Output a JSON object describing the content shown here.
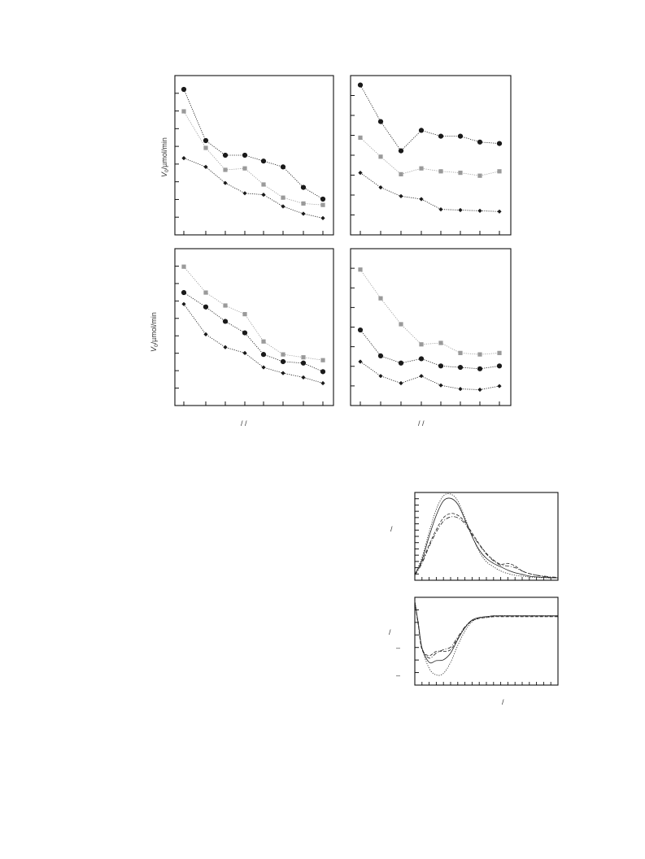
{
  "colors": {
    "series_dark": "#1a1a1a",
    "series_gray": "#9a9a9a",
    "axis": "#111111",
    "text": "#333333"
  },
  "labels": {
    "top_ylabel_main": "V",
    "top_ylabel_sub": "0",
    "top_ylabel_unit": "/µmol/min",
    "bottom_ylabel_main": "V",
    "bottom_ylabel_sub": "0",
    "bottom_ylabel_unit": "/µmol/min",
    "xlabel_left_marks": "/      /",
    "xlabel_right_marks": "/   /",
    "spec_top_ylabel": "/",
    "spec_bottom_ylabel": "/",
    "spec_bottom_tick1": "–",
    "spec_bottom_tick2": "–",
    "spec_xlabel": "/"
  },
  "chart_data": [
    {
      "type": "line",
      "panel": "top-left",
      "ylabel": "V0/µmol/min",
      "x": [
        1,
        2,
        3,
        4,
        5,
        6,
        7,
        8
      ],
      "xlim": [
        0.6,
        8.4
      ],
      "ylim": [
        0,
        100
      ],
      "series": [
        {
          "marker": "circle",
          "color": "#1a1a1a",
          "values": [
            95,
            60,
            50,
            50,
            46,
            42,
            28,
            20
          ]
        },
        {
          "marker": "square",
          "color": "#9a9a9a",
          "values": [
            80,
            55,
            40,
            41,
            30,
            21,
            17,
            16
          ]
        },
        {
          "marker": "diamond",
          "color": "#1a1a1a",
          "values": [
            48,
            42,
            31,
            24,
            23,
            15,
            10,
            7
          ]
        }
      ]
    },
    {
      "type": "line",
      "panel": "top-right",
      "x": [
        1,
        2,
        3,
        4,
        5,
        6,
        7,
        8
      ],
      "xlim": [
        0.6,
        8.4
      ],
      "ylim": [
        0,
        100
      ],
      "series": [
        {
          "marker": "circle",
          "color": "#1a1a1a",
          "values": [
            98,
            73,
            53,
            67,
            63,
            63,
            59,
            58
          ]
        },
        {
          "marker": "square",
          "color": "#9a9a9a",
          "values": [
            62,
            49,
            37,
            41,
            39,
            38,
            36,
            39
          ]
        },
        {
          "marker": "diamond",
          "color": "#1a1a1a",
          "values": [
            38,
            28,
            22,
            20,
            13,
            12.5,
            12,
            11.5
          ]
        }
      ]
    },
    {
      "type": "line",
      "panel": "bottom-left",
      "ylabel": "V0/µmol/min",
      "x": [
        1,
        2,
        3,
        4,
        5,
        6,
        7,
        8
      ],
      "xlim": [
        0.6,
        8.4
      ],
      "ylim": [
        0,
        100
      ],
      "series": [
        {
          "marker": "square",
          "color": "#9a9a9a",
          "values": [
            92,
            74,
            65,
            59,
            40,
            31,
            29,
            27
          ]
        },
        {
          "marker": "circle",
          "color": "#1a1a1a",
          "values": [
            74,
            64,
            54,
            46,
            31,
            26,
            25,
            19
          ]
        },
        {
          "marker": "diamond",
          "color": "#1a1a1a",
          "values": [
            66,
            45,
            36,
            32,
            22,
            18,
            15,
            11
          ]
        }
      ]
    },
    {
      "type": "line",
      "panel": "bottom-right",
      "x": [
        1,
        2,
        3,
        4,
        5,
        6,
        7,
        8
      ],
      "xlim": [
        0.6,
        8.4
      ],
      "ylim": [
        0,
        100
      ],
      "series": [
        {
          "marker": "square",
          "color": "#9a9a9a",
          "values": [
            90,
            70,
            52,
            38,
            39,
            32,
            31,
            32
          ]
        },
        {
          "marker": "circle",
          "color": "#1a1a1a",
          "values": [
            48,
            30,
            25,
            28,
            23,
            22,
            21,
            23
          ]
        },
        {
          "marker": "diamond",
          "color": "#1a1a1a",
          "values": [
            26,
            16,
            11,
            16,
            9.5,
            7,
            6.5,
            9
          ]
        }
      ]
    },
    {
      "type": "line",
      "panel": "spectrum-top",
      "x": [
        0,
        0.05,
        0.1,
        0.15,
        0.2,
        0.25,
        0.3,
        0.35,
        0.4,
        0.45,
        0.5,
        0.55,
        0.6,
        0.65,
        0.7,
        0.75,
        0.8,
        0.85,
        0.9,
        0.95,
        1.0
      ],
      "xlim": [
        0,
        1
      ],
      "ylim": [
        0,
        1
      ],
      "series": [
        {
          "style": "dotted",
          "values": [
            0.05,
            0.25,
            0.55,
            0.82,
            0.98,
            1.0,
            0.92,
            0.72,
            0.5,
            0.32,
            0.2,
            0.14,
            0.09,
            0.06,
            0.04,
            0.03,
            0.02,
            0.015,
            0.01,
            0.01,
            0.01
          ]
        },
        {
          "style": "solid",
          "values": [
            0.04,
            0.22,
            0.5,
            0.75,
            0.92,
            0.95,
            0.88,
            0.7,
            0.5,
            0.34,
            0.24,
            0.18,
            0.14,
            0.1,
            0.07,
            0.05,
            0.03,
            0.02,
            0.015,
            0.01,
            0.01
          ]
        },
        {
          "style": "dashed",
          "values": [
            0.05,
            0.2,
            0.4,
            0.58,
            0.72,
            0.77,
            0.75,
            0.67,
            0.54,
            0.41,
            0.3,
            0.22,
            0.17,
            0.18,
            0.15,
            0.09,
            0.06,
            0.04,
            0.025,
            0.015,
            0.01
          ]
        },
        {
          "style": "dash-dot",
          "values": [
            0.04,
            0.18,
            0.38,
            0.55,
            0.68,
            0.73,
            0.72,
            0.65,
            0.52,
            0.4,
            0.29,
            0.21,
            0.16,
            0.15,
            0.13,
            0.09,
            0.06,
            0.04,
            0.03,
            0.02,
            0.015
          ]
        }
      ]
    },
    {
      "type": "line",
      "panel": "spectrum-bottom",
      "x": [
        0,
        0.025,
        0.05,
        0.1,
        0.15,
        0.2,
        0.25,
        0.3,
        0.35,
        0.4,
        0.45,
        0.5,
        0.55,
        0.6,
        0.7,
        0.8,
        0.9,
        1.0
      ],
      "xlim": [
        0,
        1
      ],
      "ylim": [
        0,
        1
      ],
      "series": [
        {
          "style": "dotted",
          "values": [
            0.98,
            0.7,
            0.42,
            0.18,
            0.1,
            0.12,
            0.25,
            0.45,
            0.62,
            0.73,
            0.77,
            0.78,
            0.79,
            0.8,
            0.8,
            0.8,
            0.8,
            0.8
          ]
        },
        {
          "style": "solid",
          "values": [
            0.97,
            0.7,
            0.42,
            0.25,
            0.27,
            0.28,
            0.36,
            0.52,
            0.66,
            0.75,
            0.78,
            0.79,
            0.8,
            0.8,
            0.8,
            0.8,
            0.8,
            0.8
          ]
        },
        {
          "style": "dashed",
          "values": [
            0.96,
            0.68,
            0.4,
            0.33,
            0.38,
            0.38,
            0.4,
            0.53,
            0.66,
            0.74,
            0.77,
            0.78,
            0.79,
            0.79,
            0.79,
            0.79,
            0.79,
            0.79
          ]
        },
        {
          "style": "dash-dot",
          "values": [
            0.97,
            0.7,
            0.42,
            0.3,
            0.36,
            0.4,
            0.43,
            0.55,
            0.67,
            0.75,
            0.78,
            0.79,
            0.8,
            0.8,
            0.8,
            0.8,
            0.8,
            0.8
          ]
        }
      ]
    }
  ]
}
